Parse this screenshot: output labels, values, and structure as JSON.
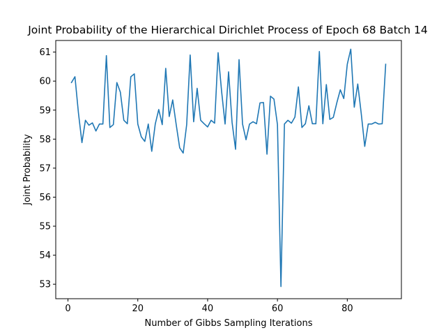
{
  "chart_data": {
    "type": "line",
    "title": "Joint Probability of the Hierarchical Dirichlet Process of Epoch 68 Batch 14",
    "xlabel": "Number of Gibbs Sampling Iterations",
    "ylabel": "Joint Probability",
    "xlim": [
      -3.5,
      95.5
    ],
    "ylim": [
      52.5,
      61.4
    ],
    "xticks": [
      0,
      20,
      40,
      60,
      80
    ],
    "yticks": [
      53,
      54,
      55,
      56,
      57,
      58,
      59,
      60,
      61
    ],
    "grid": false,
    "legend": "none",
    "series": [
      {
        "color": "#1f77b4",
        "x": [
          1,
          2,
          3,
          4,
          5,
          6,
          7,
          8,
          9,
          10,
          11,
          12,
          13,
          14,
          15,
          16,
          17,
          18,
          19,
          20,
          21,
          22,
          23,
          24,
          25,
          26,
          27,
          28,
          29,
          30,
          31,
          32,
          33,
          34,
          35,
          36,
          37,
          38,
          39,
          40,
          41,
          42,
          43,
          44,
          45,
          46,
          47,
          48,
          49,
          50,
          51,
          52,
          53,
          54,
          55,
          56,
          57,
          58,
          59,
          60,
          61,
          62,
          63,
          64,
          65,
          66,
          67,
          68,
          69,
          70,
          71,
          72,
          73,
          74,
          75,
          76,
          77,
          78,
          79,
          80,
          81,
          82,
          83,
          84,
          85,
          86,
          87,
          88,
          89,
          90,
          91
        ],
        "y": [
          59.95,
          60.15,
          58.9,
          57.88,
          58.65,
          58.48,
          58.56,
          58.28,
          58.52,
          58.52,
          60.88,
          58.4,
          58.5,
          59.95,
          59.62,
          58.65,
          58.53,
          60.15,
          60.25,
          58.52,
          58.08,
          57.92,
          58.52,
          57.58,
          58.52,
          59.02,
          58.5,
          60.44,
          58.78,
          59.35,
          58.5,
          57.7,
          57.52,
          58.5,
          60.9,
          58.6,
          59.75,
          58.65,
          58.53,
          58.42,
          58.65,
          58.55,
          60.98,
          59.65,
          58.52,
          60.32,
          58.58,
          57.65,
          60.74,
          58.52,
          57.98,
          58.52,
          58.6,
          58.53,
          59.25,
          59.26,
          57.48,
          59.48,
          59.38,
          58.5,
          52.92,
          58.52,
          58.65,
          58.55,
          58.76,
          59.8,
          58.4,
          58.53,
          59.15,
          58.53,
          58.53,
          61.02,
          58.53,
          59.88,
          58.68,
          58.75,
          59.25,
          59.7,
          59.4,
          60.58,
          61.1,
          59.1,
          59.9,
          58.88,
          57.75,
          58.52,
          58.52,
          58.58,
          58.52,
          58.53,
          60.58
        ]
      }
    ]
  }
}
